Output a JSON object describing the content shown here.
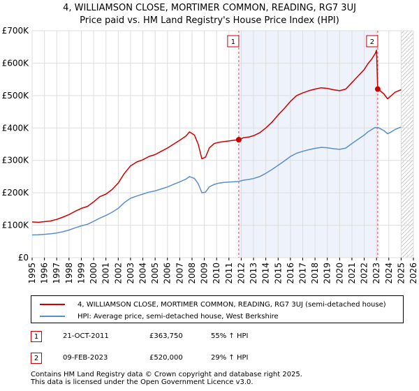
{
  "chart_data": {
    "type": "line",
    "title_line1": "4, WILLIAMSON CLOSE, MORTIMER COMMON, READING, RG7 3UJ",
    "title_line2": "Price paid vs. HM Land Registry's House Price Index (HPI)",
    "xlim": [
      1995,
      2026
    ],
    "ylim": [
      0,
      700000
    ],
    "y_ticks": [
      0,
      100000,
      200000,
      300000,
      400000,
      500000,
      600000,
      700000
    ],
    "y_tick_labels": [
      "£0",
      "£100K",
      "£200K",
      "£300K",
      "£400K",
      "£500K",
      "£600K",
      "£700K"
    ],
    "x_ticks": [
      1995,
      1996,
      1997,
      1998,
      1999,
      2000,
      2001,
      2002,
      2003,
      2004,
      2005,
      2006,
      2007,
      2008,
      2009,
      2010,
      2011,
      2012,
      2013,
      2014,
      2015,
      2016,
      2017,
      2018,
      2019,
      2020,
      2021,
      2022,
      2023,
      2024,
      2025,
      2026
    ],
    "grid": true,
    "forecast_start": 2025.0,
    "series": [
      {
        "name": "4, WILLIAMSON CLOSE, MORTIMER COMMON, READING, RG7 3UJ (semi-detached house)",
        "color": "#cc0000",
        "x": [
          1995.0,
          1995.5,
          1996.0,
          1996.5,
          1997.0,
          1997.5,
          1998.0,
          1998.5,
          1999.0,
          1999.5,
          2000.0,
          2000.5,
          2001.0,
          2001.5,
          2002.0,
          2002.5,
          2003.0,
          2003.5,
          2004.0,
          2004.5,
          2005.0,
          2005.5,
          2006.0,
          2006.5,
          2007.0,
          2007.5,
          2007.8,
          2008.2,
          2008.5,
          2008.8,
          2009.1,
          2009.4,
          2009.8,
          2010.2,
          2010.6,
          2011.0,
          2011.4,
          2011.8,
          2012.2,
          2012.6,
          2013.0,
          2013.5,
          2014.0,
          2014.5,
          2015.0,
          2015.5,
          2016.0,
          2016.5,
          2017.0,
          2017.5,
          2018.0,
          2018.5,
          2019.0,
          2019.5,
          2020.0,
          2020.5,
          2021.0,
          2021.5,
          2022.0,
          2022.3,
          2022.6,
          2022.9,
          2023.0,
          2023.1,
          2023.3,
          2023.6,
          2023.9,
          2024.2,
          2024.5,
          2024.8,
          2025.0
        ],
        "values": [
          110000,
          109000,
          111000,
          113000,
          118000,
          125000,
          133000,
          143000,
          152000,
          158000,
          172000,
          188000,
          196000,
          210000,
          230000,
          260000,
          283000,
          295000,
          302000,
          312000,
          318000,
          328000,
          338000,
          350000,
          362000,
          375000,
          388000,
          378000,
          350000,
          305000,
          310000,
          338000,
          352000,
          356000,
          358000,
          360000,
          362000,
          363750,
          370000,
          372000,
          376000,
          385000,
          400000,
          418000,
          440000,
          460000,
          482000,
          500000,
          508000,
          515000,
          520000,
          524000,
          522000,
          518000,
          515000,
          520000,
          540000,
          560000,
          580000,
          598000,
          612000,
          630000,
          640000,
          520000,
          515000,
          505000,
          490000,
          500000,
          510000,
          515000,
          518000
        ]
      },
      {
        "name": "HPI: Average price, semi-detached house, West Berkshire",
        "color": "#5b8fc9",
        "x": [
          1995.0,
          1995.5,
          1996.0,
          1996.5,
          1997.0,
          1997.5,
          1998.0,
          1998.5,
          1999.0,
          1999.5,
          2000.0,
          2000.5,
          2001.0,
          2001.5,
          2002.0,
          2002.5,
          2003.0,
          2003.5,
          2004.0,
          2004.5,
          2005.0,
          2005.5,
          2006.0,
          2006.5,
          2007.0,
          2007.5,
          2007.8,
          2008.2,
          2008.5,
          2008.8,
          2009.1,
          2009.4,
          2009.8,
          2010.2,
          2010.6,
          2011.0,
          2011.4,
          2011.8,
          2012.2,
          2012.6,
          2013.0,
          2013.5,
          2014.0,
          2014.5,
          2015.0,
          2015.5,
          2016.0,
          2016.5,
          2017.0,
          2017.5,
          2018.0,
          2018.5,
          2019.0,
          2019.5,
          2020.0,
          2020.5,
          2021.0,
          2021.5,
          2022.0,
          2022.3,
          2022.6,
          2022.9,
          2023.0,
          2023.1,
          2023.3,
          2023.6,
          2023.9,
          2024.2,
          2024.5,
          2024.8,
          2025.0
        ],
        "values": [
          70000,
          70500,
          72000,
          73500,
          76000,
          80000,
          85000,
          92000,
          98000,
          103000,
          112000,
          122000,
          130000,
          140000,
          152000,
          170000,
          183000,
          190000,
          196000,
          202000,
          206000,
          212000,
          218000,
          226000,
          234000,
          242000,
          250000,
          244000,
          228000,
          200000,
          202000,
          218000,
          226000,
          230000,
          232000,
          233000,
          234000,
          235000,
          239000,
          241000,
          244000,
          250000,
          260000,
          272000,
          285000,
          298000,
          312000,
          322000,
          328000,
          333000,
          337000,
          340000,
          339000,
          336000,
          334000,
          338000,
          352000,
          365000,
          378000,
          388000,
          395000,
          402000,
          400000,
          402000,
          398000,
          392000,
          382000,
          388000,
          395000,
          400000,
          403000
        ]
      }
    ],
    "sales": [
      {
        "label": "1",
        "x": 2011.8,
        "value": 363750
      },
      {
        "label": "2",
        "x": 2023.1,
        "value": 520000
      }
    ]
  },
  "legend": {
    "property_label": "4, WILLIAMSON CLOSE, MORTIMER COMMON, READING, RG7 3UJ (semi-detached house)",
    "hpi_label": "HPI: Average price, semi-detached house, West Berkshire"
  },
  "transactions": [
    {
      "num": "1",
      "date": "21-OCT-2011",
      "price": "£363,750",
      "hpi": "55% ↑ HPI"
    },
    {
      "num": "2",
      "date": "09-FEB-2023",
      "price": "£520,000",
      "hpi": "29% ↑ HPI"
    }
  ],
  "footer": {
    "line1": "Contains HM Land Registry data © Crown copyright and database right 2025.",
    "line2": "This data is licensed under the Open Government Licence v3.0."
  }
}
